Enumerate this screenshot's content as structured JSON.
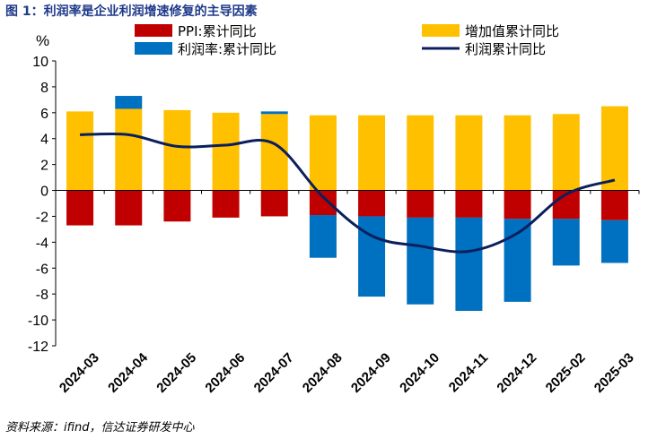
{
  "title": "图 1：利润率是企业利润增速修复的主导因素",
  "source": "资料来源：ifind，信达证券研发中心",
  "chart_data": {
    "type": "bar",
    "unit_label": "%",
    "categories": [
      "2024-03",
      "2024-04",
      "2024-05",
      "2024-06",
      "2024-07",
      "2024-08",
      "2024-09",
      "2024-10",
      "2024-11",
      "2024-12",
      "2025-02",
      "2025-03"
    ],
    "ylim": [
      -12,
      10
    ],
    "yticks": [
      -12,
      -10,
      -8,
      -6,
      -4,
      -2,
      0,
      2,
      4,
      6,
      8,
      10
    ],
    "series": [
      {
        "name": "增加值累计同比",
        "kind": "bar",
        "color": "#FFC000",
        "values": [
          6.1,
          6.3,
          6.2,
          6.0,
          5.9,
          5.8,
          5.8,
          5.8,
          5.8,
          5.8,
          5.9,
          6.5
        ]
      },
      {
        "name": "PPI:累计同比",
        "kind": "bar",
        "color": "#C00000",
        "values": [
          -2.7,
          -2.7,
          -2.4,
          -2.1,
          -2.0,
          -1.9,
          -2.0,
          -2.1,
          -2.1,
          -2.2,
          -2.2,
          -2.3
        ]
      },
      {
        "name": "利润率:累计同比",
        "kind": "bar",
        "color": "#0070C0",
        "values": [
          0,
          1.0,
          0,
          0,
          0.2,
          -3.3,
          -6.2,
          -6.7,
          -7.2,
          -6.4,
          -3.6,
          -3.3
        ]
      },
      {
        "name": "利润累计同比",
        "kind": "line",
        "color": "#0B1F5C",
        "values": [
          4.3,
          4.3,
          3.4,
          3.5,
          3.6,
          -0.5,
          -3.5,
          -4.3,
          -4.7,
          -3.3,
          -0.3,
          0.8
        ]
      }
    ]
  }
}
